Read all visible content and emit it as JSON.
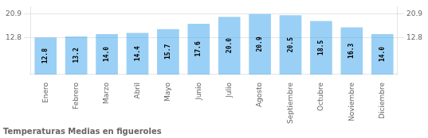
{
  "chart_data": {
    "type": "bar",
    "title": "Temperaturas Medias en figueroles",
    "categories": [
      "Enero",
      "Febrero",
      "Marzo",
      "Abril",
      "Mayo",
      "Junio",
      "Julio",
      "Agosto",
      "Septiembre",
      "Octubre",
      "Noviembre",
      "Diciembre"
    ],
    "values": [
      12.8,
      13.2,
      14.0,
      14.4,
      15.7,
      17.6,
      20.0,
      20.9,
      20.5,
      18.5,
      16.3,
      14.0
    ],
    "value_labels": [
      "12.8",
      "13.2",
      "14.0",
      "14.4",
      "15.7",
      "17.6",
      "20.0",
      "20.9",
      "20.5",
      "18.5",
      "16.3",
      "14.0"
    ],
    "data_labels": true,
    "ylim": [
      0,
      23.5
    ],
    "yticks": [
      12.8,
      20.9
    ],
    "y2lim": [
      0,
      23.5
    ],
    "y2ticks": [
      12.8,
      20.9
    ],
    "grid": true
  }
}
